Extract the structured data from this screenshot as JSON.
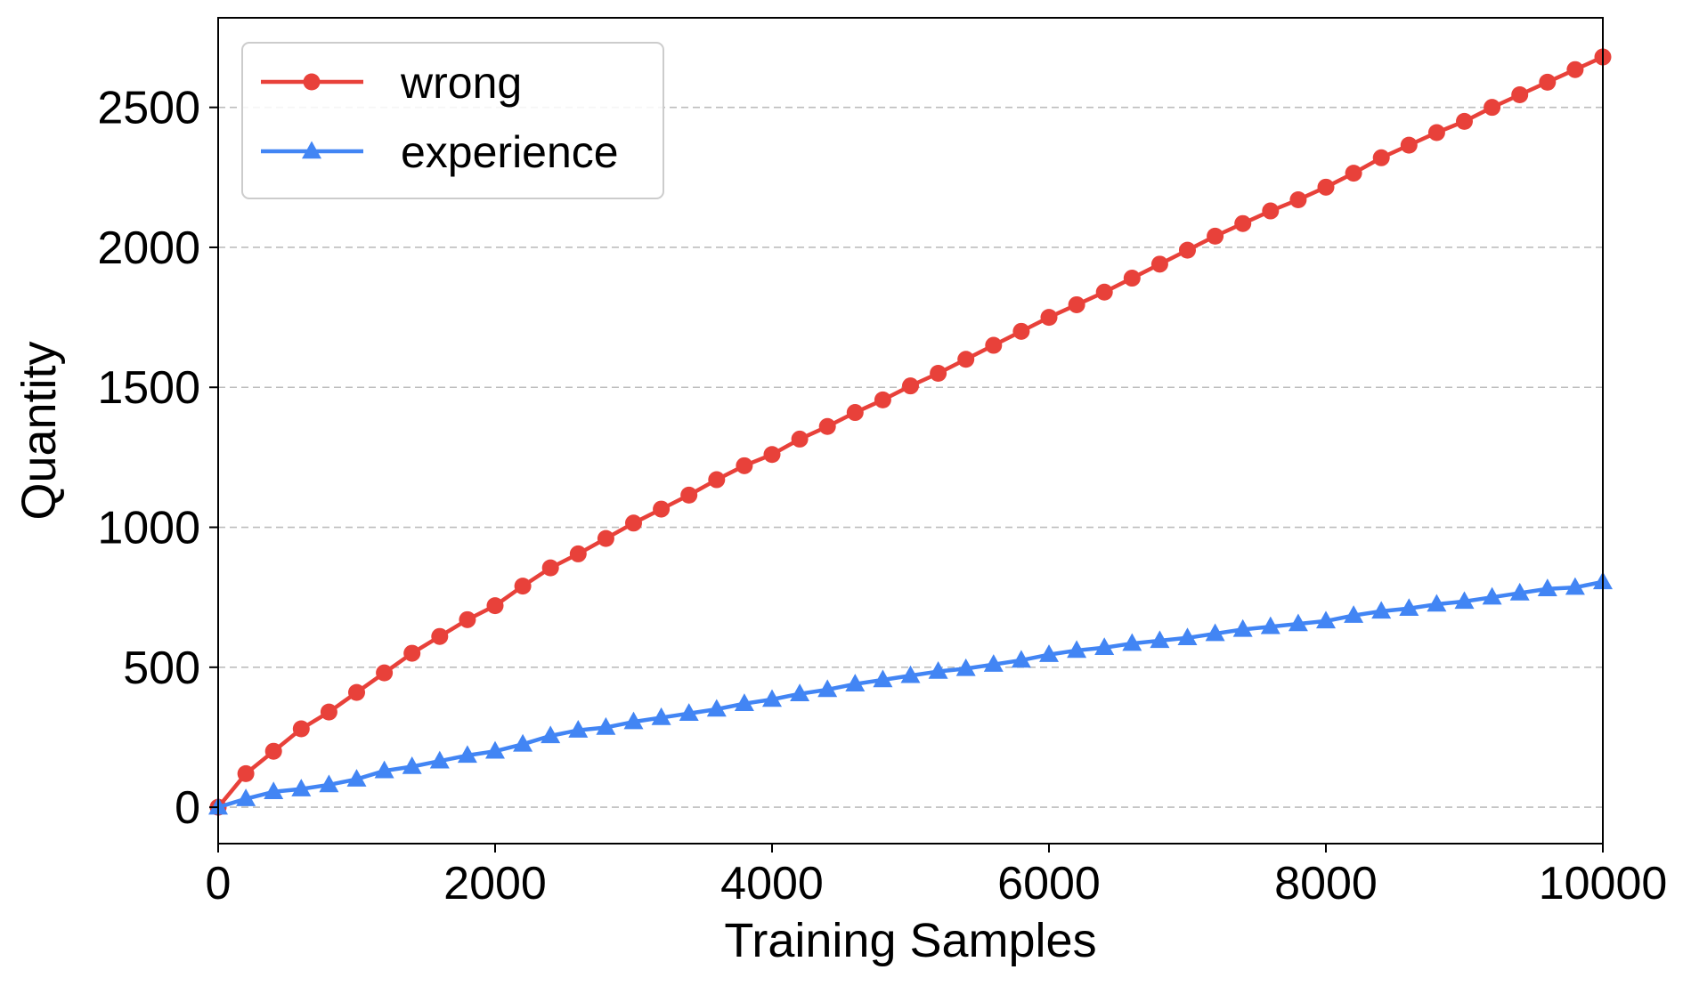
{
  "chart_data": {
    "type": "line",
    "xlabel": "Training Samples",
    "ylabel": "Quantity",
    "xlim": [
      0,
      10000
    ],
    "ylim": [
      -130,
      2820
    ],
    "xticks": [
      0,
      2000,
      4000,
      6000,
      8000,
      10000
    ],
    "yticks": [
      0,
      500,
      1000,
      1500,
      2000,
      2500
    ],
    "xtick_labels": [
      "0",
      "2000",
      "4000",
      "6000",
      "8000",
      "10000"
    ],
    "ytick_labels": [
      "0",
      "500",
      "1000",
      "1500",
      "2000",
      "2500"
    ],
    "grid": "horizontal dashed",
    "legend_position": "top-left",
    "x": [
      0,
      200,
      400,
      600,
      800,
      1000,
      1200,
      1400,
      1600,
      1800,
      2000,
      2200,
      2400,
      2600,
      2800,
      3000,
      3200,
      3400,
      3600,
      3800,
      4000,
      4200,
      4400,
      4600,
      4800,
      5000,
      5200,
      5400,
      5600,
      5800,
      6000,
      6200,
      6400,
      6600,
      6800,
      7000,
      7200,
      7400,
      7600,
      7800,
      8000,
      8200,
      8400,
      8600,
      8800,
      9000,
      9200,
      9400,
      9600,
      9800,
      10000
    ],
    "series": [
      {
        "name": "wrong",
        "color": "#e8413a",
        "marker": "circle",
        "values": [
          0,
          120,
          200,
          280,
          340,
          410,
          480,
          550,
          610,
          670,
          720,
          790,
          855,
          905,
          960,
          1015,
          1065,
          1115,
          1170,
          1220,
          1260,
          1315,
          1360,
          1410,
          1455,
          1505,
          1550,
          1600,
          1650,
          1700,
          1750,
          1795,
          1840,
          1890,
          1940,
          1990,
          2040,
          2085,
          2130,
          2170,
          2215,
          2265,
          2320,
          2365,
          2410,
          2450,
          2500,
          2545,
          2590,
          2635,
          2680
        ]
      },
      {
        "name": "experience",
        "color": "#4285f4",
        "marker": "triangle",
        "values": [
          0,
          30,
          55,
          65,
          80,
          100,
          130,
          145,
          165,
          185,
          200,
          225,
          255,
          275,
          285,
          305,
          320,
          335,
          350,
          370,
          385,
          405,
          420,
          440,
          455,
          470,
          485,
          495,
          510,
          525,
          545,
          560,
          570,
          585,
          595,
          605,
          620,
          635,
          645,
          655,
          665,
          685,
          700,
          710,
          725,
          735,
          750,
          765,
          780,
          785,
          805
        ]
      }
    ]
  }
}
